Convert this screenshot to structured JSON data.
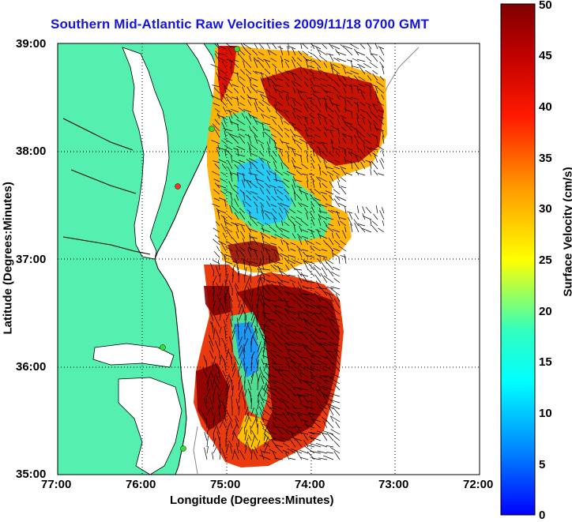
{
  "title": "Southern Mid-Atlantic Raw Velocities 2009/11/18 0700 GMT",
  "x_axis": {
    "label": "Longitude (Degrees:Minutes)",
    "ticks": [
      "77:00",
      "76:00",
      "75:00",
      "74:00",
      "73:00",
      "72:00"
    ]
  },
  "y_axis": {
    "label": "Latitude (Degrees:Minutes)",
    "ticks": [
      "39:00",
      "38:00",
      "37:00",
      "36:00",
      "35:00"
    ]
  },
  "colorbar": {
    "label": "Surface Velocity (cm/s)",
    "ticks": [
      "50",
      "45",
      "40",
      "35",
      "30",
      "25",
      "20",
      "15",
      "10",
      "5",
      "0"
    ],
    "min": 0,
    "max": 50,
    "colors": [
      "#0000ff",
      "#00a0ff",
      "#00ffff",
      "#30ffc0",
      "#ffff00",
      "#ff9900",
      "#ff0000",
      "#c00000",
      "#800000"
    ]
  },
  "map": {
    "land_color": "#55f0b0",
    "ocean_color": "#ffffff",
    "coastline_color": "#000000",
    "station_color": "#33dd33"
  }
}
